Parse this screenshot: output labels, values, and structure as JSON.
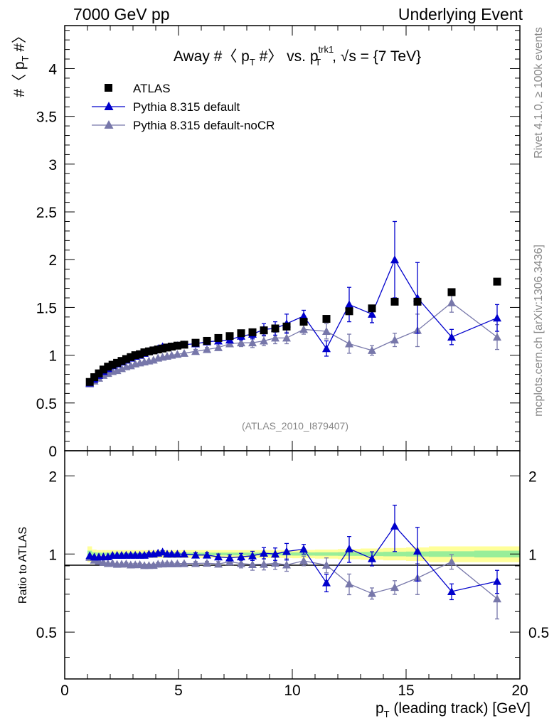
{
  "header": {
    "left": "7000 GeV pp",
    "right": "Underlying Event"
  },
  "side": {
    "rivet": "Rivet 4.1.0, ≥ 100k events",
    "mcplots": "mcplots.cern.ch [arXiv:1306.3436]"
  },
  "chart_data": {
    "type": "scatter",
    "title_parts": {
      "pre": "Away #〈 p",
      "sub1": "T",
      "mid": " #〉 vs. p",
      "sup2": "trk1",
      "sub2": "T",
      "post": ", √s = {7 TeV}"
    },
    "ylabel_parts": {
      "pre": "#〈 p",
      "sub": "T",
      "post": " #〉"
    },
    "ratio_ylabel": "Ratio to ATLAS",
    "xlabel_parts": {
      "pre": "p",
      "sub": "T",
      "post": " (leading track) [GeV]"
    },
    "analysis_id": "(ATLAS_2010_I879407)",
    "xlim": [
      0,
      20
    ],
    "ylim": [
      0,
      4.45
    ],
    "ratio_ylim": [
      0.33,
      2.5
    ],
    "x_ticks": [
      "0",
      "5",
      "10",
      "15",
      "20"
    ],
    "y_ticks": [
      "0",
      "0.5",
      "1",
      "1.5",
      "2",
      "2.5",
      "3",
      "3.5",
      "4"
    ],
    "ratio_ticks": [
      "0.5",
      "1",
      "2"
    ],
    "legend": [
      {
        "name": "ATLAS",
        "color": "#000000",
        "marker": "square"
      },
      {
        "name": "Pythia 8.315 default",
        "color": "#0000cc",
        "marker": "triangle"
      },
      {
        "name": "Pythia 8.315 default-noCR",
        "color": "#7777aa",
        "marker": "triangle"
      }
    ],
    "x": [
      1.1,
      1.3,
      1.5,
      1.7,
      1.9,
      2.1,
      2.3,
      2.5,
      2.7,
      2.9,
      3.1,
      3.3,
      3.5,
      3.7,
      3.9,
      4.1,
      4.3,
      4.5,
      4.7,
      4.95,
      5.25,
      5.75,
      6.25,
      6.75,
      7.25,
      7.75,
      8.25,
      8.75,
      9.25,
      9.75,
      10.5,
      11.5,
      12.5,
      13.5,
      14.5,
      15.5,
      17.0,
      19.0
    ],
    "series": [
      {
        "name": "ATLAS",
        "values": [
          0.72,
          0.77,
          0.81,
          0.85,
          0.88,
          0.9,
          0.92,
          0.94,
          0.96,
          0.98,
          1.0,
          1.01,
          1.03,
          1.04,
          1.05,
          1.06,
          1.07,
          1.08,
          1.09,
          1.1,
          1.11,
          1.13,
          1.15,
          1.18,
          1.2,
          1.23,
          1.24,
          1.26,
          1.28,
          1.3,
          1.35,
          1.38,
          1.46,
          1.49,
          1.56,
          1.56,
          1.66,
          1.77
        ]
      },
      {
        "name": "Pythia 8.315 default",
        "values": [
          0.71,
          0.75,
          0.79,
          0.83,
          0.86,
          0.89,
          0.91,
          0.93,
          0.95,
          0.97,
          0.99,
          1.0,
          1.02,
          1.04,
          1.05,
          1.07,
          1.09,
          1.08,
          1.09,
          1.1,
          1.11,
          1.12,
          1.14,
          1.15,
          1.16,
          1.2,
          1.22,
          1.27,
          1.28,
          1.33,
          1.41,
          1.07,
          1.53,
          1.43,
          2.0,
          1.6,
          1.19,
          1.39
        ],
        "errors": [
          0.005,
          0.005,
          0.005,
          0.005,
          0.005,
          0.005,
          0.005,
          0.005,
          0.01,
          0.01,
          0.01,
          0.01,
          0.01,
          0.01,
          0.01,
          0.01,
          0.01,
          0.01,
          0.01,
          0.01,
          0.01,
          0.02,
          0.02,
          0.03,
          0.03,
          0.04,
          0.05,
          0.06,
          0.07,
          0.1,
          0.06,
          0.08,
          0.18,
          0.09,
          0.4,
          0.37,
          0.08,
          0.14
        ]
      },
      {
        "name": "Pythia 8.315 default-noCR",
        "values": [
          0.7,
          0.73,
          0.76,
          0.79,
          0.81,
          0.83,
          0.84,
          0.86,
          0.88,
          0.89,
          0.91,
          0.92,
          0.93,
          0.94,
          0.95,
          0.97,
          0.98,
          0.99,
          1.0,
          1.01,
          1.02,
          1.04,
          1.06,
          1.08,
          1.12,
          1.13,
          1.13,
          1.15,
          1.18,
          1.18,
          1.27,
          1.25,
          1.12,
          1.05,
          1.16,
          1.26,
          1.55,
          1.19
        ],
        "errors": [
          0.005,
          0.005,
          0.005,
          0.005,
          0.005,
          0.005,
          0.005,
          0.005,
          0.01,
          0.01,
          0.01,
          0.01,
          0.01,
          0.01,
          0.01,
          0.01,
          0.01,
          0.01,
          0.01,
          0.01,
          0.01,
          0.02,
          0.02,
          0.02,
          0.03,
          0.04,
          0.05,
          0.05,
          0.06,
          0.06,
          0.05,
          0.08,
          0.1,
          0.05,
          0.07,
          0.17,
          0.1,
          0.13
        ]
      }
    ],
    "ratio_series": [
      {
        "name": "Pythia 8.315 default",
        "values": [
          0.986,
          0.974,
          0.975,
          0.976,
          0.977,
          0.989,
          0.989,
          0.989,
          0.99,
          0.99,
          0.99,
          0.99,
          0.99,
          1.0,
          1.0,
          1.009,
          1.019,
          1.0,
          1.0,
          1.0,
          1.0,
          0.991,
          0.991,
          0.975,
          0.967,
          0.976,
          0.984,
          1.008,
          1.0,
          1.023,
          1.044,
          0.775,
          1.048,
          0.96,
          1.282,
          1.026,
          0.717,
          0.785
        ],
        "errors": [
          0.008,
          0.008,
          0.008,
          0.008,
          0.008,
          0.008,
          0.008,
          0.008,
          0.01,
          0.01,
          0.01,
          0.01,
          0.01,
          0.01,
          0.01,
          0.01,
          0.01,
          0.01,
          0.01,
          0.01,
          0.01,
          0.02,
          0.02,
          0.025,
          0.025,
          0.03,
          0.04,
          0.05,
          0.055,
          0.075,
          0.045,
          0.06,
          0.12,
          0.06,
          0.26,
          0.24,
          0.05,
          0.08
        ]
      },
      {
        "name": "Pythia 8.315 default-noCR",
        "values": [
          0.972,
          0.948,
          0.938,
          0.929,
          0.92,
          0.922,
          0.913,
          0.915,
          0.917,
          0.908,
          0.91,
          0.911,
          0.903,
          0.904,
          0.905,
          0.915,
          0.916,
          0.917,
          0.917,
          0.918,
          0.919,
          0.92,
          0.922,
          0.915,
          0.933,
          0.919,
          0.911,
          0.913,
          0.922,
          0.908,
          0.941,
          0.906,
          0.767,
          0.705,
          0.744,
          0.808,
          0.934,
          0.672
        ],
        "errors": [
          0.008,
          0.008,
          0.008,
          0.008,
          0.008,
          0.008,
          0.008,
          0.008,
          0.01,
          0.01,
          0.01,
          0.01,
          0.01,
          0.01,
          0.01,
          0.01,
          0.01,
          0.01,
          0.01,
          0.01,
          0.01,
          0.015,
          0.015,
          0.02,
          0.025,
          0.035,
          0.045,
          0.045,
          0.05,
          0.05,
          0.04,
          0.06,
          0.07,
          0.035,
          0.045,
          0.11,
          0.06,
          0.11
        ]
      }
    ],
    "ratio_bands": {
      "x_edges": [
        1.0,
        1.2,
        1.4,
        1.6,
        1.8,
        2.0,
        2.2,
        2.4,
        2.6,
        2.8,
        3.0,
        3.2,
        3.4,
        3.6,
        3.8,
        4.0,
        4.2,
        4.4,
        4.6,
        4.8,
        5.1,
        5.5,
        6.0,
        6.5,
        7.0,
        7.5,
        8.0,
        8.5,
        9.0,
        9.5,
        10.0,
        11.0,
        12.0,
        13.0,
        14.0,
        15.0,
        16.0,
        18.0,
        20.0
      ],
      "stat_halfwidth": [
        0.03,
        0.015,
        0.012,
        0.012,
        0.012,
        0.012,
        0.012,
        0.012,
        0.012,
        0.012,
        0.012,
        0.012,
        0.012,
        0.012,
        0.012,
        0.012,
        0.012,
        0.012,
        0.012,
        0.012,
        0.012,
        0.012,
        0.012,
        0.012,
        0.012,
        0.012,
        0.012,
        0.012,
        0.012,
        0.013,
        0.014,
        0.015,
        0.016,
        0.018,
        0.02,
        0.022,
        0.025,
        0.03
      ],
      "total_halfwidth": [
        0.07,
        0.04,
        0.035,
        0.035,
        0.035,
        0.035,
        0.035,
        0.035,
        0.035,
        0.035,
        0.035,
        0.035,
        0.035,
        0.035,
        0.035,
        0.035,
        0.035,
        0.035,
        0.035,
        0.035,
        0.035,
        0.035,
        0.035,
        0.035,
        0.035,
        0.035,
        0.035,
        0.035,
        0.035,
        0.035,
        0.037,
        0.04,
        0.045,
        0.05,
        0.055,
        0.06,
        0.07,
        0.07
      ]
    },
    "colors": {
      "band_total": "#ffff99",
      "band_stat": "#99ee99",
      "ref_line": "#000000"
    }
  }
}
